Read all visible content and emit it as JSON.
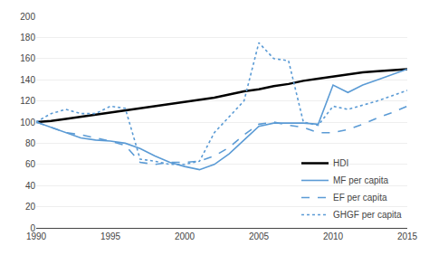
{
  "chart_data": {
    "type": "line",
    "x": [
      1990,
      1991,
      1992,
      1993,
      1994,
      1995,
      1996,
      1997,
      1998,
      1999,
      2000,
      2001,
      2002,
      2003,
      2004,
      2005,
      2006,
      2007,
      2008,
      2009,
      2010,
      2011,
      2012,
      2013,
      2014,
      2015
    ],
    "series": [
      {
        "name": "HDI",
        "color": "#000000",
        "line_style": "solid",
        "values": [
          100,
          101,
          103,
          105,
          107,
          109,
          111,
          113,
          115,
          117,
          119,
          121,
          123,
          126,
          129,
          131,
          134,
          136,
          139,
          141,
          143,
          145,
          147,
          148,
          149,
          150
        ]
      },
      {
        "name": "MF per capita",
        "color": "#5b9bd5",
        "line_style": "solid",
        "values": [
          100,
          95,
          90,
          85,
          83,
          82,
          80,
          75,
          68,
          62,
          58,
          55,
          60,
          70,
          83,
          96,
          99,
          99,
          99,
          98,
          135,
          128,
          135,
          140,
          145,
          150
        ]
      },
      {
        "name": "EF per capita",
        "color": "#5b9bd5",
        "line_style": "dashed",
        "values": [
          100,
          95,
          90,
          88,
          85,
          82,
          78,
          62,
          60,
          62,
          62,
          63,
          68,
          76,
          88,
          98,
          100,
          97,
          95,
          90,
          90,
          93,
          98,
          104,
          109,
          115
        ]
      },
      {
        "name": "GHGF per capita",
        "color": "#5b9bd5",
        "line_style": "dotted",
        "values": [
          100,
          108,
          112,
          108,
          108,
          115,
          113,
          65,
          63,
          60,
          60,
          63,
          90,
          105,
          120,
          175,
          160,
          158,
          100,
          97,
          115,
          112,
          116,
          120,
          125,
          130
        ]
      }
    ],
    "xlim": [
      1990,
      2015
    ],
    "xticks": [
      1990,
      1995,
      2000,
      2005,
      2010,
      2015
    ],
    "ylim": [
      0,
      200
    ],
    "yticks": [
      0,
      20,
      40,
      60,
      80,
      100,
      120,
      140,
      160,
      180,
      200
    ],
    "grid": true,
    "legend": "lower right"
  }
}
